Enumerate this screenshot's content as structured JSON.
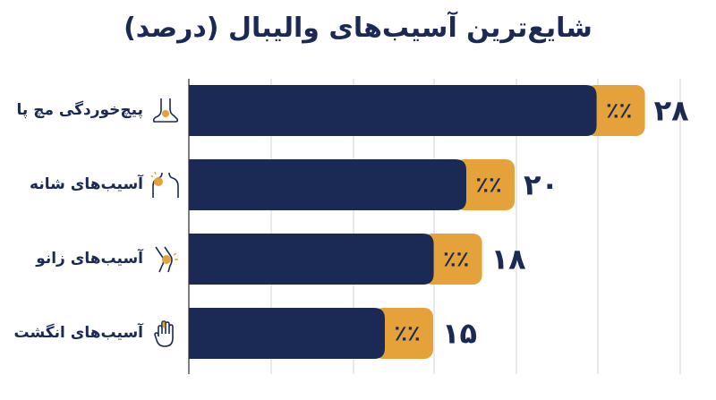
{
  "chart_data": {
    "type": "bar",
    "orientation": "horizontal",
    "title": "شایع‌ترین آسیب‌های والیبال (درصد)",
    "categories": [
      "پیچ‌خوردگی مچ پا",
      "آسیب‌های شانه",
      "آسیب‌های زانو",
      "آسیب‌های انگشت"
    ],
    "values": [
      28,
      20,
      18,
      15
    ],
    "value_labels": [
      "۲۸",
      "۲۰",
      "۱۸",
      "۱۵"
    ],
    "percent_tag": "٪٪",
    "category_icons": [
      "ankle-icon",
      "shoulder-icon",
      "knee-icon",
      "finger-icon"
    ],
    "xlim": [
      0,
      30
    ],
    "grid": true,
    "colors": {
      "bar": "#1b2a55",
      "cap": "#e6a23a",
      "text": "#1b2a55",
      "grid": "#d6d6d6"
    }
  }
}
